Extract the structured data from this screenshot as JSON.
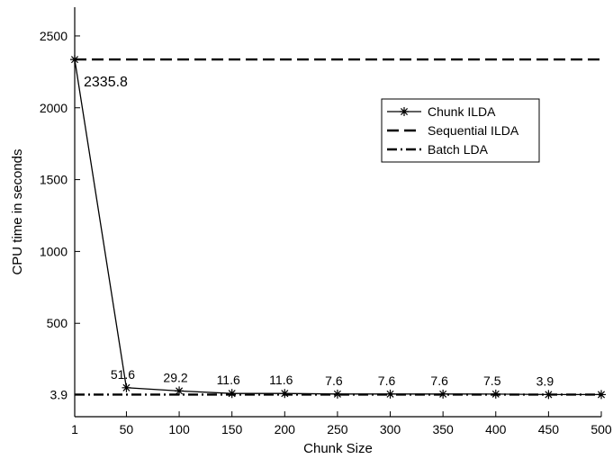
{
  "chart_data": {
    "type": "line",
    "title": "",
    "xlabel": "Chunk Size",
    "ylabel": "CPU time in seconds",
    "x_ticks": [
      1,
      50,
      100,
      150,
      200,
      250,
      300,
      350,
      400,
      450,
      500
    ],
    "x_tick_labels": [
      "1",
      "50",
      "100",
      "150",
      "200",
      "250",
      "300",
      "350",
      "400",
      "450",
      "500"
    ],
    "y_ticks": [
      3.9,
      500,
      1000,
      1500,
      2000,
      2500
    ],
    "y_tick_labels": [
      "3.9",
      "500",
      "1000",
      "1500",
      "2000",
      "2500"
    ],
    "xlim": [
      1,
      500
    ],
    "ylim": [
      -150,
      2700
    ],
    "grid": false,
    "legend_position": "upper-right",
    "series": [
      {
        "name": "Chunk ILDA",
        "style": "solid-star",
        "x": [
          1,
          50,
          100,
          150,
          200,
          250,
          300,
          350,
          400,
          450,
          500
        ],
        "y": [
          2335.8,
          51.6,
          29.2,
          11.6,
          11.6,
          7.6,
          7.6,
          7.6,
          7.5,
          3.9,
          3.9
        ],
        "labels": [
          "2335.8",
          "51.6",
          "29.2",
          "11.6",
          "11.6",
          "7.6",
          "7.6",
          "7.6",
          "7.5",
          "3.9",
          ""
        ]
      },
      {
        "name": "Sequential ILDA",
        "style": "dashed",
        "x": [
          1,
          500
        ],
        "y": [
          2335.8,
          2335.8
        ]
      },
      {
        "name": "Batch LDA",
        "style": "dash-dot",
        "x": [
          1,
          500
        ],
        "y": [
          3.9,
          3.9
        ]
      }
    ]
  }
}
